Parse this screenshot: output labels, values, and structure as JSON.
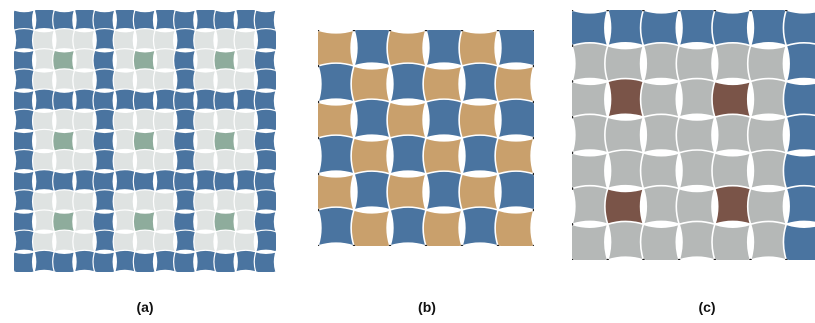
{
  "figure": {
    "panels": [
      {
        "id": "a",
        "caption": "(a)",
        "grid": 13,
        "base_color": "#4a74a0",
        "pattern_blocks": [
          {
            "rows": [
              1,
              5
            ],
            "cols": [
              1,
              5
            ],
            "fill": "#dfe3e2",
            "core": "#8eac9c"
          },
          {
            "rows": [
              1,
              5
            ],
            "cols": [
              4,
              8
            ],
            "fill": "#dfe3e2",
            "core": "#8eac9c"
          },
          {
            "rows": [
              1,
              5
            ],
            "cols": [
              7,
              11
            ],
            "fill": "#dfe3e2",
            "core": "#8eac9c"
          }
        ]
      },
      {
        "id": "b",
        "caption": "(b)",
        "grid": 6,
        "colors": [
          "#c9a06c",
          "#4a74a0"
        ]
      },
      {
        "id": "c",
        "caption": "(c)",
        "grid": 7,
        "base_color": "#4a74a0",
        "light_color": "#b5b8b7",
        "core_color": "#7a5448"
      }
    ],
    "stroke_color": "#ffffff"
  }
}
